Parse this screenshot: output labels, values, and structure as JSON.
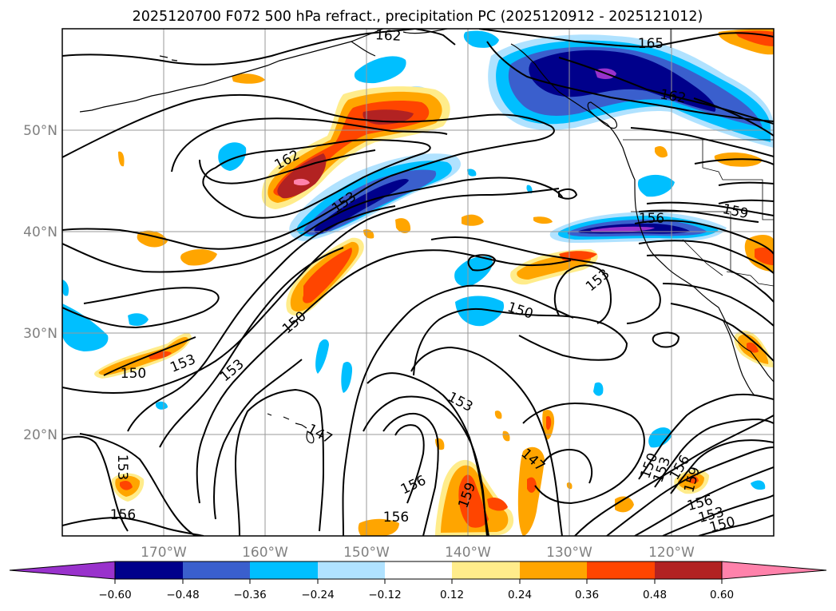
{
  "title": "2025120700 F072 500 hPa refract., precipitation PC (2025120912 - 2025121012)",
  "lat_ticks": [
    "20°N",
    "30°N",
    "40°N",
    "50°N"
  ],
  "lon_ticks": [
    "170°W",
    "160°W",
    "150°W",
    "140°W",
    "130°W",
    "120°W"
  ],
  "colorbar": {
    "tick_labels": [
      "−0.60",
      "−0.48",
      "−0.36",
      "−0.24",
      "−0.12",
      "0.12",
      "0.24",
      "0.36",
      "0.48",
      "0.60"
    ],
    "colors": [
      "#9932cc",
      "#00008b",
      "#3a5fcd",
      "#00bfff",
      "#b0e2ff",
      "#ffffff",
      "#ffec8b",
      "#ffa500",
      "#ff4500",
      "#b22222",
      "#ff82ab"
    ]
  },
  "contour_labels": [
    "162",
    "165",
    "162",
    "162",
    "153",
    "156",
    "159",
    "153",
    "150",
    "150",
    "153",
    "153",
    "150",
    "147",
    "153",
    "147",
    "153",
    "156",
    "159",
    "156",
    "156",
    "150",
    "153",
    "156",
    "159",
    "156",
    "153",
    "150"
  ],
  "colors": {
    "contour": "#000000",
    "grid": "#999999",
    "tick_label": "#808080"
  }
}
